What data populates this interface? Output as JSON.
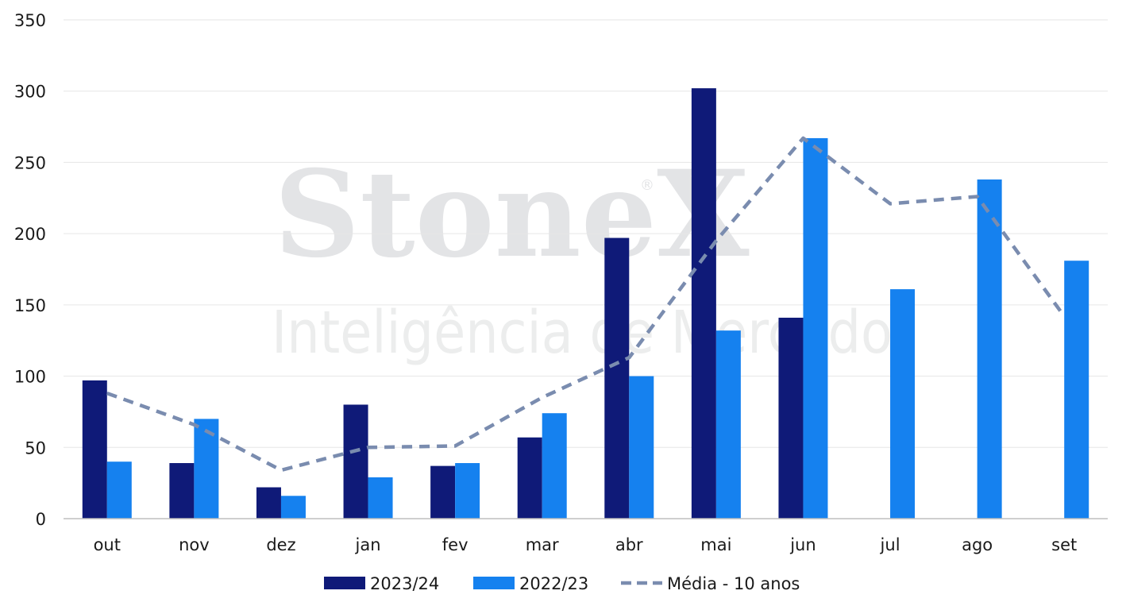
{
  "watermark": {
    "brand": "StoneX",
    "registered": "®",
    "tagline": "Inteligência de Mercado"
  },
  "chart_data": {
    "type": "bar",
    "categories": [
      "out",
      "nov",
      "dez",
      "jan",
      "fev",
      "mar",
      "abr",
      "mai",
      "jun",
      "jul",
      "ago",
      "set"
    ],
    "ylim": [
      0,
      350
    ],
    "yticks": [
      0,
      50,
      100,
      150,
      200,
      250,
      300,
      350
    ],
    "grid": true,
    "legend_position": "bottom",
    "series": [
      {
        "name": "2023/24",
        "type": "bar",
        "color": "#0f1a78",
        "values": [
          97,
          39,
          22,
          80,
          37,
          57,
          197,
          302,
          141,
          null,
          null,
          null
        ]
      },
      {
        "name": "2022/23",
        "type": "bar",
        "color": "#1581ef",
        "values": [
          40,
          70,
          16,
          29,
          39,
          74,
          100,
          132,
          267,
          161,
          238,
          181
        ]
      },
      {
        "name": "Média - 10 anos",
        "type": "line",
        "style": "dashed",
        "color": "#7a8caf",
        "values": [
          88,
          66,
          34,
          50,
          51,
          85,
          113,
          195,
          267,
          221,
          226,
          142
        ]
      }
    ]
  }
}
